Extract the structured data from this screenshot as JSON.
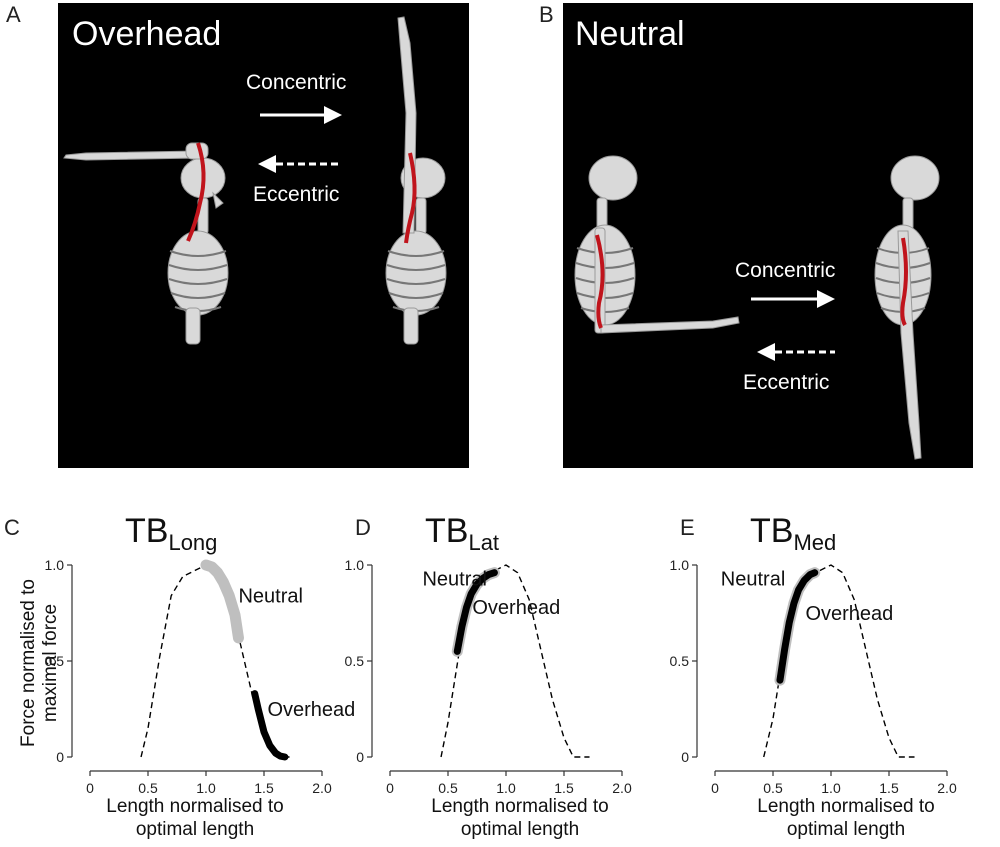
{
  "panels": {
    "A": {
      "letter": "A",
      "title": "Overhead",
      "concentric": "Concentric",
      "eccentric": "Eccentric"
    },
    "B": {
      "letter": "B",
      "title": "Neutral",
      "concentric": "Concentric",
      "eccentric": "Eccentric"
    }
  },
  "colors": {
    "background": "#000000",
    "bone": "#d9d9d9",
    "muscle": "#c0141c",
    "arrow": "#ffffff",
    "neutral_series": "#bfbfbf",
    "overhead_series": "#000000",
    "curve": "#000000"
  },
  "ylabel": {
    "line1": "Force normalised to",
    "line2": "maximal force"
  },
  "chart_data": [
    {
      "panel_letter": "C",
      "type": "line",
      "title_main": "TB",
      "title_sub": "Long",
      "xlabel_line1": "Length normalised to",
      "xlabel_line2": "optimal length",
      "xlim": [
        0,
        2.0
      ],
      "ylim": [
        0,
        1.0
      ],
      "xticks": [
        "0",
        "0.5",
        "1.0",
        "1.5",
        "2.0"
      ],
      "yticks": [
        "0",
        "0.5",
        "1.0"
      ],
      "curve": {
        "x": [
          0.44,
          0.5,
          0.6,
          0.7,
          0.8,
          0.9,
          1.0,
          1.1,
          1.2,
          1.3,
          1.4,
          1.5,
          1.6,
          1.66,
          1.72
        ],
        "y": [
          0.0,
          0.15,
          0.52,
          0.84,
          0.94,
          0.97,
          1.0,
          0.96,
          0.82,
          0.58,
          0.32,
          0.12,
          0.02,
          0.0,
          0.0
        ]
      },
      "series": [
        {
          "name": "Neutral",
          "x": [
            1.0,
            1.05,
            1.1,
            1.15,
            1.2,
            1.25,
            1.28
          ],
          "y": [
            1.0,
            0.99,
            0.96,
            0.91,
            0.84,
            0.74,
            0.62
          ]
        },
        {
          "name": "Overhead",
          "x": [
            1.42,
            1.45,
            1.5,
            1.55,
            1.6,
            1.64,
            1.68
          ],
          "y": [
            0.33,
            0.25,
            0.13,
            0.06,
            0.02,
            0.005,
            0.0
          ]
        }
      ],
      "annotations": [
        {
          "text": "Neutral",
          "x": 1.28,
          "y": 0.84
        },
        {
          "text": "Overhead",
          "x": 1.53,
          "y": 0.25
        }
      ]
    },
    {
      "panel_letter": "D",
      "type": "line",
      "title_main": "TB",
      "title_sub": "Lat",
      "xlabel_line1": "Length normalised to",
      "xlabel_line2": "optimal length",
      "xlim": [
        0,
        2.0
      ],
      "ylim": [
        0,
        1.0
      ],
      "xticks": [
        "0",
        "0.5",
        "1.0",
        "1.5",
        "2.0"
      ],
      "yticks": [
        "0",
        "0.5",
        "1.0"
      ],
      "curve": {
        "x": [
          0.44,
          0.5,
          0.6,
          0.7,
          0.8,
          0.9,
          1.0,
          1.1,
          1.2,
          1.3,
          1.4,
          1.5,
          1.58,
          1.66,
          1.72
        ],
        "y": [
          0.0,
          0.18,
          0.56,
          0.84,
          0.93,
          0.97,
          1.0,
          0.96,
          0.82,
          0.56,
          0.3,
          0.1,
          0.0,
          0.0,
          0.0
        ]
      },
      "series": [
        {
          "name": "Neutral",
          "x": [
            0.58,
            0.62,
            0.66,
            0.7,
            0.75,
            0.8,
            0.85,
            0.9
          ],
          "y": [
            0.55,
            0.68,
            0.78,
            0.85,
            0.9,
            0.93,
            0.95,
            0.96
          ]
        },
        {
          "name": "Overhead",
          "x": [
            0.58,
            0.62,
            0.66,
            0.7,
            0.75,
            0.8,
            0.85,
            0.9
          ],
          "y": [
            0.55,
            0.68,
            0.78,
            0.85,
            0.9,
            0.93,
            0.95,
            0.96
          ]
        }
      ],
      "annotations": [
        {
          "text": "Neutral",
          "x": 0.28,
          "y": 0.93
        },
        {
          "text": "Overhead",
          "x": 0.71,
          "y": 0.78
        }
      ]
    },
    {
      "panel_letter": "E",
      "type": "line",
      "title_main": "TB",
      "title_sub": "Med",
      "xlabel_line1": "Length normalised to",
      "xlabel_line2": "optimal length",
      "xlim": [
        0,
        2.0
      ],
      "ylim": [
        0,
        1.0
      ],
      "xticks": [
        "0",
        "0.5",
        "1.0",
        "1.5",
        "2.0"
      ],
      "yticks": [
        "0",
        "0.5",
        "1.0"
      ],
      "curve": {
        "x": [
          0.42,
          0.5,
          0.6,
          0.7,
          0.8,
          0.9,
          1.0,
          1.1,
          1.2,
          1.3,
          1.4,
          1.5,
          1.58,
          1.66,
          1.72
        ],
        "y": [
          0.0,
          0.2,
          0.58,
          0.84,
          0.93,
          0.97,
          1.0,
          0.96,
          0.82,
          0.56,
          0.3,
          0.1,
          0.0,
          0.0,
          0.0
        ]
      },
      "series": [
        {
          "name": "Neutral",
          "x": [
            0.56,
            0.6,
            0.64,
            0.68,
            0.72,
            0.77,
            0.82,
            0.86
          ],
          "y": [
            0.4,
            0.56,
            0.7,
            0.8,
            0.87,
            0.92,
            0.95,
            0.96
          ]
        },
        {
          "name": "Overhead",
          "x": [
            0.56,
            0.6,
            0.64,
            0.68,
            0.72,
            0.77,
            0.82,
            0.86
          ],
          "y": [
            0.4,
            0.56,
            0.7,
            0.8,
            0.87,
            0.92,
            0.95,
            0.96
          ]
        }
      ],
      "annotations": [
        {
          "text": "Neutral",
          "x": 0.05,
          "y": 0.93
        },
        {
          "text": "Overhead",
          "x": 0.78,
          "y": 0.75
        }
      ]
    }
  ]
}
